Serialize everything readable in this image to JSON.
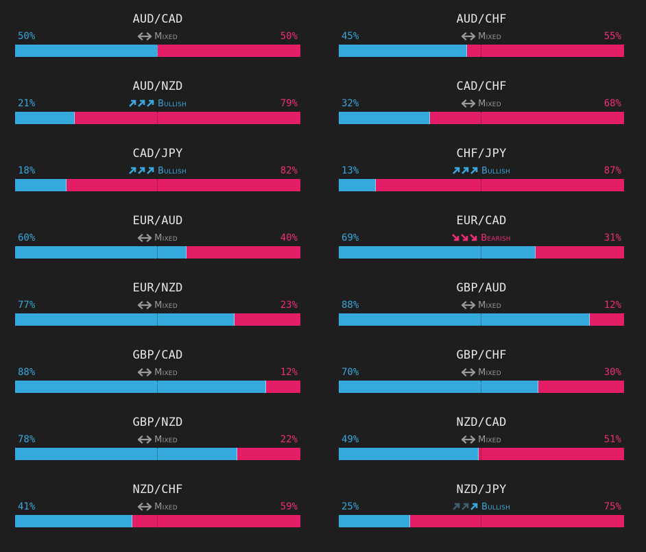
{
  "colors": {
    "long": "#39a7dc",
    "short": "#ee2f78",
    "mixed": "#9a9a9a",
    "bullish": "#39a7dc",
    "bearish": "#ee2f78",
    "dim_arrow": "#3f5e6e"
  },
  "pairs": [
    {
      "pair": "AUD/CAD",
      "long_pct": "50%",
      "short_pct": "50%",
      "long_value": 50,
      "sentiment": "Mixed",
      "sentiment_type": "mixed",
      "icon": "double-arrow-horizontal-icon"
    },
    {
      "pair": "AUD/CHF",
      "long_pct": "45%",
      "short_pct": "55%",
      "long_value": 45,
      "sentiment": "Mixed",
      "sentiment_type": "mixed",
      "icon": "double-arrow-horizontal-icon"
    },
    {
      "pair": "AUD/NZD",
      "long_pct": "21%",
      "short_pct": "79%",
      "long_value": 21,
      "sentiment": "Bullish",
      "sentiment_type": "bullish",
      "icon": "triple-up-arrow-icon"
    },
    {
      "pair": "CAD/CHF",
      "long_pct": "32%",
      "short_pct": "68%",
      "long_value": 32,
      "sentiment": "Mixed",
      "sentiment_type": "mixed",
      "icon": "double-arrow-horizontal-icon"
    },
    {
      "pair": "CAD/JPY",
      "long_pct": "18%",
      "short_pct": "82%",
      "long_value": 18,
      "sentiment": "Bullish",
      "sentiment_type": "bullish",
      "icon": "triple-up-arrow-icon"
    },
    {
      "pair": "CHF/JPY",
      "long_pct": "13%",
      "short_pct": "87%",
      "long_value": 13,
      "sentiment": "Bullish",
      "sentiment_type": "bullish",
      "icon": "triple-up-arrow-icon"
    },
    {
      "pair": "EUR/AUD",
      "long_pct": "60%",
      "short_pct": "40%",
      "long_value": 60,
      "sentiment": "Mixed",
      "sentiment_type": "mixed",
      "icon": "double-arrow-horizontal-icon"
    },
    {
      "pair": "EUR/CAD",
      "long_pct": "69%",
      "short_pct": "31%",
      "long_value": 69,
      "sentiment": "Bearish",
      "sentiment_type": "bearish",
      "icon": "triple-down-arrow-icon"
    },
    {
      "pair": "EUR/NZD",
      "long_pct": "77%",
      "short_pct": "23%",
      "long_value": 77,
      "sentiment": "Mixed",
      "sentiment_type": "mixed",
      "icon": "double-arrow-horizontal-icon"
    },
    {
      "pair": "GBP/AUD",
      "long_pct": "88%",
      "short_pct": "12%",
      "long_value": 88,
      "sentiment": "Mixed",
      "sentiment_type": "mixed",
      "icon": "double-arrow-horizontal-icon"
    },
    {
      "pair": "GBP/CAD",
      "long_pct": "88%",
      "short_pct": "12%",
      "long_value": 88,
      "sentiment": "Mixed",
      "sentiment_type": "mixed",
      "icon": "double-arrow-horizontal-icon"
    },
    {
      "pair": "GBP/CHF",
      "long_pct": "70%",
      "short_pct": "30%",
      "long_value": 70,
      "sentiment": "Mixed",
      "sentiment_type": "mixed",
      "icon": "double-arrow-horizontal-icon"
    },
    {
      "pair": "GBP/NZD",
      "long_pct": "78%",
      "short_pct": "22%",
      "long_value": 78,
      "sentiment": "Mixed",
      "sentiment_type": "mixed",
      "icon": "double-arrow-horizontal-icon"
    },
    {
      "pair": "NZD/CAD",
      "long_pct": "49%",
      "short_pct": "51%",
      "long_value": 49,
      "sentiment": "Mixed",
      "sentiment_type": "mixed",
      "icon": "double-arrow-horizontal-icon"
    },
    {
      "pair": "NZD/CHF",
      "long_pct": "41%",
      "short_pct": "59%",
      "long_value": 41,
      "sentiment": "Mixed",
      "sentiment_type": "mixed",
      "icon": "double-arrow-horizontal-icon"
    },
    {
      "pair": "NZD/JPY",
      "long_pct": "25%",
      "short_pct": "75%",
      "long_value": 25,
      "sentiment": "Bullish",
      "sentiment_type": "bullish-weak",
      "icon": "single-up-arrow-icon"
    }
  ]
}
